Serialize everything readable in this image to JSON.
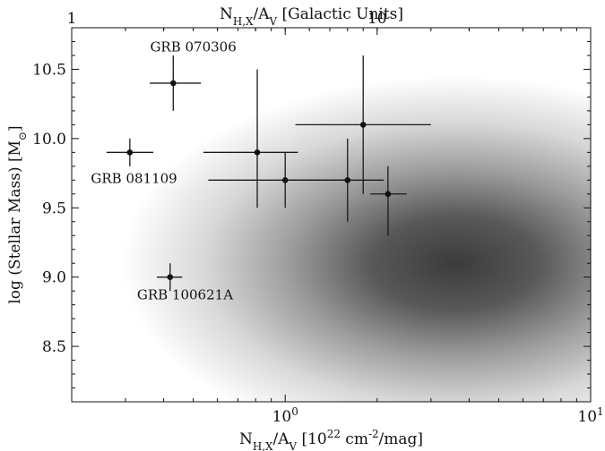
{
  "chart_data": {
    "type": "scatter",
    "xlabel": "N_H,X/A_V [10^22 cm^-2/mag]",
    "ylabel": "log (Stellar Mass) [M_⊙]",
    "top_xlabel": "N_H,X/A_V [Galactic Units]",
    "x_scale": "log",
    "xlim": [
      0.2,
      10
    ],
    "ylim": [
      8.1,
      10.8
    ],
    "x_ticks": [
      {
        "value": 1,
        "label": "10^0"
      },
      {
        "value": 10,
        "label": "10^1"
      }
    ],
    "y_ticks": [
      {
        "value": 8.5,
        "label": "8.5"
      },
      {
        "value": 9.0,
        "label": "9.0"
      },
      {
        "value": 9.5,
        "label": "9.5"
      },
      {
        "value": 10.0,
        "label": "10.0"
      },
      {
        "value": 10.5,
        "label": "10.5"
      }
    ],
    "top_ticks": [
      {
        "value": 1,
        "label": "1"
      },
      {
        "value": 10,
        "label": "10"
      }
    ],
    "top_scale_factor": 0.2,
    "background_density": {
      "peak_x": 3.6,
      "peak_y": 9.1,
      "sigma_logx": 0.42,
      "sigma_y": 0.52,
      "color": "#3b3b3b"
    },
    "points": [
      {
        "name": "GRB 070306",
        "x": 0.43,
        "y": 10.4,
        "x_err": [
          0.36,
          0.53
        ],
        "y_err": [
          10.2,
          10.6
        ]
      },
      {
        "name": "GRB 081109",
        "x": 0.31,
        "y": 9.9,
        "x_err": [
          0.26,
          0.37
        ],
        "y_err": [
          9.8,
          10.0
        ]
      },
      {
        "name": "GRB 100621A",
        "x": 0.42,
        "y": 9.0,
        "x_err": [
          0.38,
          0.46
        ],
        "y_err": [
          8.9,
          9.1
        ]
      },
      {
        "name": "",
        "x": 0.81,
        "y": 9.9,
        "x_err": [
          0.54,
          1.1
        ],
        "y_err": [
          9.5,
          10.5
        ]
      },
      {
        "name": "",
        "x": 1.0,
        "y": 9.7,
        "x_err": [
          0.56,
          1.6
        ],
        "y_err": [
          9.5,
          9.9
        ]
      },
      {
        "name": "",
        "x": 1.6,
        "y": 9.7,
        "x_err": [
          1.0,
          2.1
        ],
        "y_err": [
          9.4,
          10.0
        ]
      },
      {
        "name": "",
        "x": 1.8,
        "y": 10.1,
        "x_err": [
          1.08,
          3.0
        ],
        "y_err": [
          9.6,
          10.6
        ]
      },
      {
        "name": "",
        "x": 2.17,
        "y": 9.6,
        "x_err": [
          1.9,
          2.5
        ],
        "y_err": [
          9.3,
          9.8
        ]
      }
    ],
    "annotations": [
      {
        "text": "GRB 070306",
        "x": 0.5,
        "y": 10.63
      },
      {
        "text": "GRB 081109",
        "x": 0.32,
        "y": 9.68
      },
      {
        "text": "GRB 100621A",
        "x": 0.47,
        "y": 8.84
      }
    ]
  }
}
